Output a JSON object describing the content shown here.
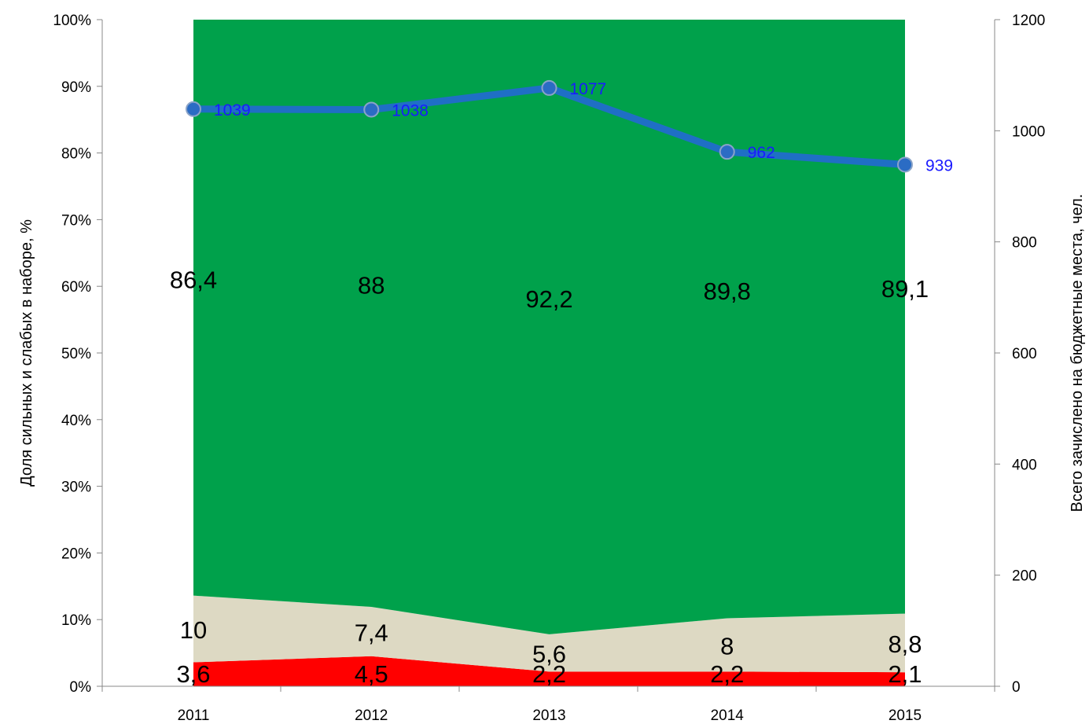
{
  "chart_data": {
    "type": "area",
    "stacking": "percent",
    "categories": [
      "2011",
      "2012",
      "2013",
      "2014",
      "2015"
    ],
    "series": [
      {
        "values": [
          3.6,
          4.5,
          2.2,
          2.2,
          2.1
        ],
        "labels": [
          "3,6",
          "4,5",
          "2,2",
          "2,2",
          "2,1"
        ],
        "color": "#ff0000",
        "kind": "area"
      },
      {
        "values": [
          10,
          7.4,
          5.6,
          8,
          8.8
        ],
        "labels": [
          "10",
          "7,4",
          "5,6",
          "8",
          "8,8"
        ],
        "color": "#ddd9c3",
        "kind": "area"
      },
      {
        "values": [
          86.4,
          88,
          92.2,
          89.8,
          89.1
        ],
        "labels": [
          "86,4",
          "88",
          "92,2",
          "89,8",
          "89,1"
        ],
        "color": "#00a14b",
        "kind": "area"
      },
      {
        "values": [
          1039,
          1038,
          1077,
          962,
          939
        ],
        "labels": [
          "1039",
          "1038",
          "1077",
          "962",
          "939"
        ],
        "color": "#1f6fc5",
        "marker_color": "#2b6cc4",
        "label_color": "#1a1aff",
        "kind": "line",
        "axis": "right"
      }
    ],
    "ylabel": "Доля сильных и слабых в наборе, %",
    "y2label": "Всего зачислено на бюджетные места, чел.",
    "ylim": [
      0,
      100
    ],
    "y2lim": [
      0,
      1200
    ],
    "yticks": [
      "0%",
      "10%",
      "20%",
      "30%",
      "40%",
      "50%",
      "60%",
      "70%",
      "80%",
      "90%",
      "100%"
    ],
    "y2ticks": [
      "0",
      "200",
      "400",
      "600",
      "800",
      "1000",
      "1200"
    ],
    "grid": false,
    "legend": "none"
  }
}
